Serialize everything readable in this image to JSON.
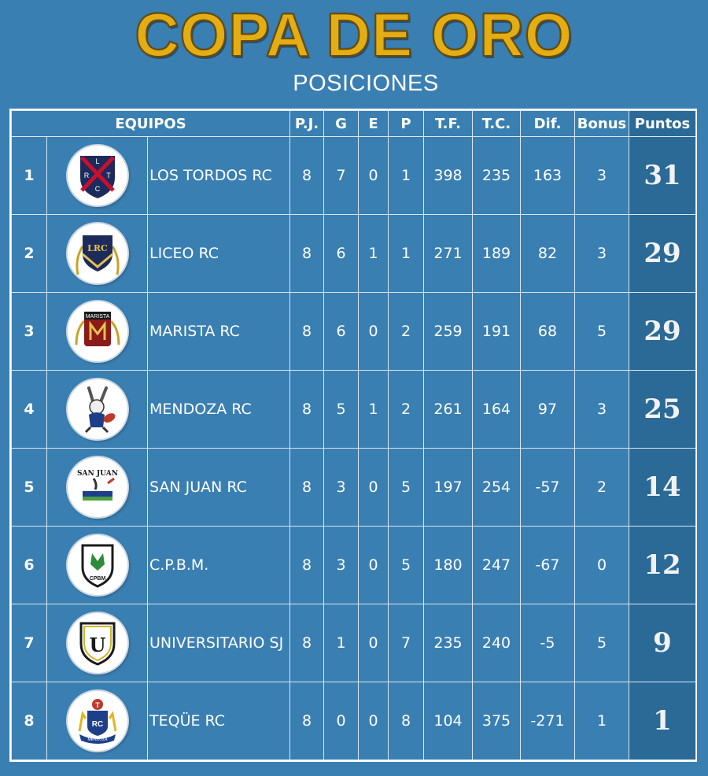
{
  "header": {
    "title": "COPA DE ORO",
    "subtitle": "POSICIONES"
  },
  "table": {
    "columns": {
      "equipos": "EQUIPOS",
      "pj": "P.J.",
      "g": "G",
      "e": "E",
      "p": "P",
      "tf": "T.F.",
      "tc": "T.C.",
      "dif": "Dif.",
      "bonus": "Bonus",
      "puntos": "Puntos"
    },
    "rows": [
      {
        "pos": "1",
        "team": "LOS TORDOS RC",
        "logo": "los-tordos-crest-icon",
        "pj": "8",
        "g": "7",
        "e": "0",
        "p": "1",
        "tf": "398",
        "tc": "235",
        "dif": "163",
        "bonus": "3",
        "pts": "31"
      },
      {
        "pos": "2",
        "team": "LICEO RC",
        "logo": "liceo-crest-icon",
        "pj": "8",
        "g": "6",
        "e": "1",
        "p": "1",
        "tf": "271",
        "tc": "189",
        "dif": "82",
        "bonus": "3",
        "pts": "29"
      },
      {
        "pos": "3",
        "team": "MARISTA RC",
        "logo": "marista-crest-icon",
        "pj": "8",
        "g": "6",
        "e": "0",
        "p": "2",
        "tf": "259",
        "tc": "191",
        "dif": "68",
        "bonus": "5",
        "pts": "29"
      },
      {
        "pos": "4",
        "team": "MENDOZA RC",
        "logo": "mendoza-rabbit-icon",
        "pj": "8",
        "g": "5",
        "e": "1",
        "p": "2",
        "tf": "261",
        "tc": "164",
        "dif": "97",
        "bonus": "3",
        "pts": "25"
      },
      {
        "pos": "5",
        "team": "SAN JUAN RC",
        "logo": "san-juan-crest-icon",
        "pj": "8",
        "g": "3",
        "e": "0",
        "p": "5",
        "tf": "197",
        "tc": "254",
        "dif": "-57",
        "bonus": "2",
        "pts": "14"
      },
      {
        "pos": "6",
        "team": "C.P.B.M.",
        "logo": "cpbm-crest-icon",
        "pj": "8",
        "g": "3",
        "e": "0",
        "p": "5",
        "tf": "180",
        "tc": "247",
        "dif": "-67",
        "bonus": "0",
        "pts": "12"
      },
      {
        "pos": "7",
        "team": "UNIVERSITARIO SJ",
        "logo": "universitario-crest-icon",
        "pj": "8",
        "g": "1",
        "e": "0",
        "p": "7",
        "tf": "235",
        "tc": "240",
        "dif": "-5",
        "bonus": "5",
        "pts": "9"
      },
      {
        "pos": "8",
        "team": "TEQÜE RC",
        "logo": "teque-crest-icon",
        "pj": "8",
        "g": "0",
        "e": "0",
        "p": "8",
        "tf": "104",
        "tc": "375",
        "dif": "-271",
        "bonus": "1",
        "pts": "1"
      }
    ]
  },
  "logo_text": {
    "tordos": [
      "L",
      "R",
      "T",
      "C"
    ],
    "liceo": "LRC",
    "marista": "MARISTA",
    "san_juan": "SAN JUAN",
    "cpbm": "CPBM",
    "universitario": "U",
    "teque": [
      "T",
      "RC",
      "MENDOZA"
    ]
  },
  "colors": {
    "background": "#3a7fb2",
    "points_column": "#2b6a97",
    "title_gold": "#e3ad14"
  }
}
